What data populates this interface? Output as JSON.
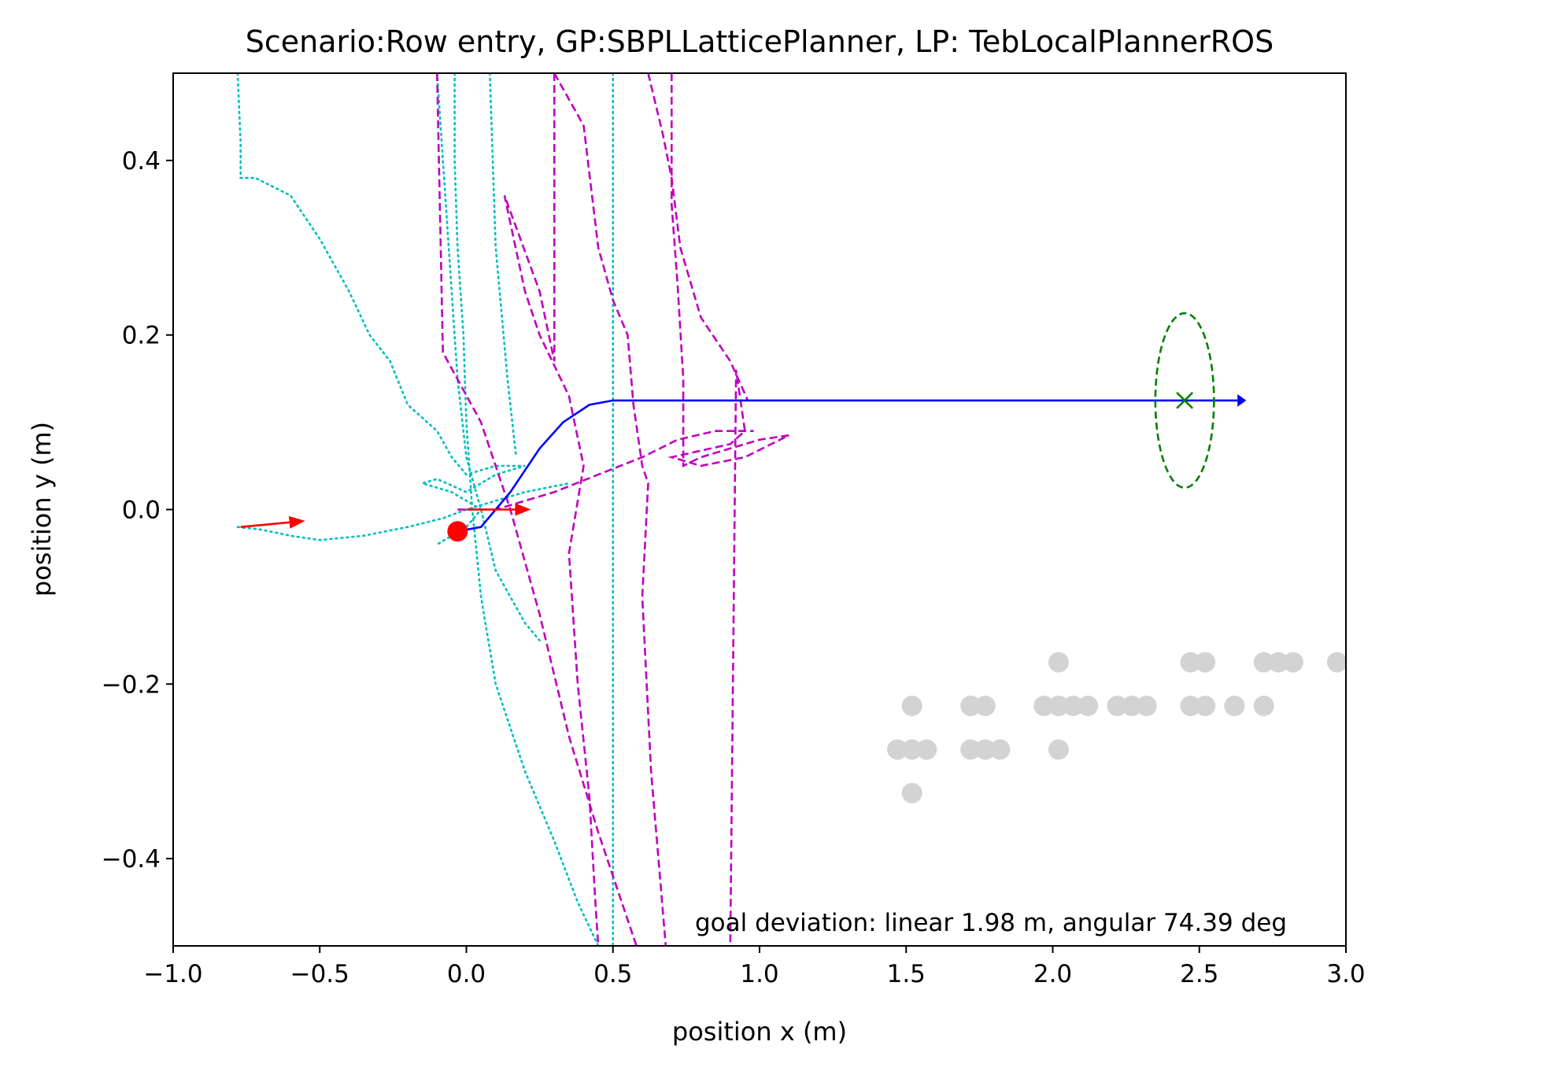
{
  "chart_data": {
    "type": "scatter",
    "title": "Scenario:Row entry, GP:SBPLLatticePlanner, LP: TebLocalPlannerROS",
    "xlabel": "position x (m)",
    "ylabel": "position y (m)",
    "xlim": [
      -1.0,
      3.0
    ],
    "ylim": [
      -0.5,
      0.5
    ],
    "xticks": [
      -1.0,
      -0.5,
      0.0,
      0.5,
      1.0,
      1.5,
      2.0,
      2.5,
      3.0
    ],
    "xtick_labels": [
      "−1.0",
      "−0.5",
      "0.0",
      "0.5",
      "1.0",
      "1.5",
      "2.0",
      "2.5",
      "3.0"
    ],
    "yticks": [
      0.4,
      0.2,
      0.0,
      -0.2,
      -0.4
    ],
    "ytick_labels": [
      "0.4",
      "0.2",
      "0.0",
      "−0.2",
      "−0.4"
    ],
    "grid": false,
    "annotation": "goal deviation: linear 1.98 m, angular 74.39 deg",
    "colors": {
      "global_plan": "#0000ff",
      "local_plans": "#bf00bf",
      "robot_trajectory": "#00bfbf",
      "pose_arrows": "#ff0000",
      "robot_position": "#ff0000",
      "goal": "#008000",
      "obstacles": "#d3d3d3"
    },
    "global_plan": [
      [
        -0.03,
        -0.025
      ],
      [
        0.05,
        -0.02
      ],
      [
        0.15,
        0.02
      ],
      [
        0.25,
        0.07
      ],
      [
        0.33,
        0.1
      ],
      [
        0.42,
        0.12
      ],
      [
        0.5,
        0.125
      ],
      [
        0.8,
        0.125
      ],
      [
        1.2,
        0.125
      ],
      [
        1.6,
        0.125
      ],
      [
        2.0,
        0.125
      ],
      [
        2.4,
        0.125
      ],
      [
        2.63,
        0.125
      ]
    ],
    "global_plan_arrow_tip": [
      2.66,
      0.125
    ],
    "robot_trajectory": [
      [
        [
          -0.78,
          0.5
        ],
        [
          -0.77,
          0.42
        ],
        [
          -0.77,
          0.38
        ],
        [
          -0.72,
          0.38
        ],
        [
          -0.6,
          0.36
        ],
        [
          -0.5,
          0.31
        ],
        [
          -0.4,
          0.25
        ],
        [
          -0.33,
          0.2
        ],
        [
          -0.26,
          0.17
        ],
        [
          -0.2,
          0.12
        ],
        [
          -0.1,
          0.09
        ],
        [
          -0.05,
          0.06
        ],
        [
          0.0,
          0.04
        ],
        [
          0.1,
          0.05
        ],
        [
          0.2,
          0.05
        ],
        [
          0.1,
          0.04
        ],
        [
          0.0,
          0.02
        ],
        [
          -0.1,
          0.035
        ],
        [
          -0.15,
          0.03
        ],
        [
          -0.05,
          0.02
        ],
        [
          0.05,
          0.0
        ],
        [
          0.0,
          -0.02
        ],
        [
          -0.1,
          -0.04
        ]
      ],
      [
        [
          -0.78,
          -0.02
        ],
        [
          -0.7,
          -0.023
        ],
        [
          -0.6,
          -0.03
        ],
        [
          -0.5,
          -0.035
        ],
        [
          -0.35,
          -0.03
        ],
        [
          -0.2,
          -0.02
        ],
        [
          -0.08,
          -0.01
        ],
        [
          0.0,
          0.0
        ],
        [
          0.1,
          0.01
        ],
        [
          0.2,
          0.02
        ],
        [
          0.35,
          0.03
        ]
      ],
      [
        [
          -0.04,
          0.5
        ],
        [
          -0.04,
          0.4
        ],
        [
          -0.03,
          0.3
        ],
        [
          -0.01,
          0.2
        ],
        [
          0.0,
          0.1
        ],
        [
          0.02,
          0.0
        ],
        [
          0.05,
          -0.1
        ],
        [
          0.1,
          -0.2
        ],
        [
          0.2,
          -0.3
        ],
        [
          0.3,
          -0.38
        ],
        [
          0.38,
          -0.45
        ],
        [
          0.45,
          -0.5
        ]
      ],
      [
        [
          -0.1,
          0.5
        ],
        [
          -0.06,
          0.3
        ],
        [
          -0.03,
          0.15
        ],
        [
          0.0,
          0.06
        ],
        [
          0.05,
          0.0
        ],
        [
          0.1,
          -0.07
        ],
        [
          0.2,
          -0.13
        ],
        [
          0.25,
          -0.15
        ]
      ],
      [
        [
          0.08,
          0.5
        ],
        [
          0.1,
          0.3
        ],
        [
          0.14,
          0.15
        ],
        [
          0.17,
          0.06
        ]
      ],
      [
        [
          0.5,
          0.5
        ],
        [
          0.5,
          0.2
        ],
        [
          0.5,
          0.0
        ],
        [
          0.5,
          -0.2
        ],
        [
          0.5,
          -0.5
        ]
      ]
    ],
    "local_plans": [
      [
        [
          -0.1,
          0.5
        ],
        [
          -0.08,
          0.18
        ],
        [
          0.05,
          0.1
        ],
        [
          0.15,
          0.0
        ],
        [
          0.25,
          -0.12
        ],
        [
          0.35,
          -0.26
        ],
        [
          0.45,
          -0.37
        ],
        [
          0.55,
          -0.47
        ],
        [
          0.58,
          -0.5
        ]
      ],
      [
        [
          0.3,
          0.5
        ],
        [
          0.3,
          0.3
        ],
        [
          0.3,
          0.17
        ],
        [
          0.25,
          0.25
        ],
        [
          0.13,
          0.36
        ],
        [
          0.2,
          0.25
        ],
        [
          0.25,
          0.2
        ],
        [
          0.35,
          0.13
        ],
        [
          0.4,
          0.05
        ],
        [
          0.35,
          -0.05
        ],
        [
          0.38,
          -0.2
        ],
        [
          0.42,
          -0.33
        ],
        [
          0.44,
          -0.45
        ],
        [
          0.45,
          -0.5
        ]
      ],
      [
        [
          0.3,
          0.5
        ],
        [
          0.4,
          0.44
        ],
        [
          0.45,
          0.3
        ],
        [
          0.5,
          0.24
        ],
        [
          0.55,
          0.2
        ],
        [
          0.57,
          0.12
        ],
        [
          0.6,
          0.05
        ],
        [
          0.62,
          0.03
        ],
        [
          0.6,
          -0.1
        ],
        [
          0.63,
          -0.3
        ],
        [
          0.66,
          -0.42
        ],
        [
          0.68,
          -0.5
        ]
      ],
      [
        [
          0.62,
          0.5
        ],
        [
          0.67,
          0.43
        ],
        [
          0.7,
          0.38
        ],
        [
          0.73,
          0.3
        ],
        [
          0.8,
          0.22
        ],
        [
          0.9,
          0.17
        ],
        [
          0.96,
          0.125
        ]
      ],
      [
        [
          0.7,
          0.5
        ],
        [
          0.7,
          0.35
        ],
        [
          0.72,
          0.26
        ],
        [
          0.74,
          0.15
        ],
        [
          0.74,
          0.05
        ],
        [
          0.8,
          0.06
        ],
        [
          0.9,
          0.07
        ],
        [
          1.0,
          0.08
        ],
        [
          1.1,
          0.085
        ],
        [
          0.95,
          0.06
        ],
        [
          0.8,
          0.05
        ],
        [
          0.7,
          0.06
        ],
        [
          0.9,
          0.075
        ],
        [
          0.95,
          0.09
        ],
        [
          0.92,
          0.16
        ],
        [
          0.9,
          -0.5
        ]
      ],
      [
        [
          -0.03,
          0.0
        ],
        [
          0.1,
          0.0
        ],
        [
          0.3,
          0.02
        ],
        [
          0.45,
          0.04
        ],
        [
          0.6,
          0.06
        ],
        [
          0.72,
          0.08
        ],
        [
          0.85,
          0.09
        ],
        [
          0.98,
          0.09
        ]
      ]
    ],
    "pose_arrows": [
      {
        "from": [
          -0.77,
          -0.02
        ],
        "to": [
          -0.55,
          -0.013
        ]
      },
      {
        "from": [
          0.0,
          0.0
        ],
        "to": [
          0.22,
          0.0
        ]
      }
    ],
    "robot_position": [
      -0.03,
      -0.025
    ],
    "goal": {
      "x": 2.45,
      "y": 0.125,
      "rx": 0.1,
      "ry": 0.1
    },
    "obstacles": [
      [
        1.47,
        -0.275
      ],
      [
        1.52,
        -0.275
      ],
      [
        1.57,
        -0.275
      ],
      [
        1.52,
        -0.225
      ],
      [
        1.52,
        -0.325
      ],
      [
        1.72,
        -0.225
      ],
      [
        1.77,
        -0.225
      ],
      [
        1.72,
        -0.275
      ],
      [
        1.77,
        -0.275
      ],
      [
        1.82,
        -0.275
      ],
      [
        2.02,
        -0.175
      ],
      [
        1.97,
        -0.225
      ],
      [
        2.02,
        -0.225
      ],
      [
        2.07,
        -0.225
      ],
      [
        2.12,
        -0.225
      ],
      [
        2.02,
        -0.275
      ],
      [
        2.22,
        -0.225
      ],
      [
        2.27,
        -0.225
      ],
      [
        2.32,
        -0.225
      ],
      [
        2.47,
        -0.175
      ],
      [
        2.52,
        -0.175
      ],
      [
        2.47,
        -0.225
      ],
      [
        2.52,
        -0.225
      ],
      [
        2.62,
        -0.225
      ],
      [
        2.72,
        -0.175
      ],
      [
        2.77,
        -0.175
      ],
      [
        2.82,
        -0.175
      ],
      [
        2.72,
        -0.225
      ],
      [
        2.97,
        -0.175
      ]
    ]
  }
}
